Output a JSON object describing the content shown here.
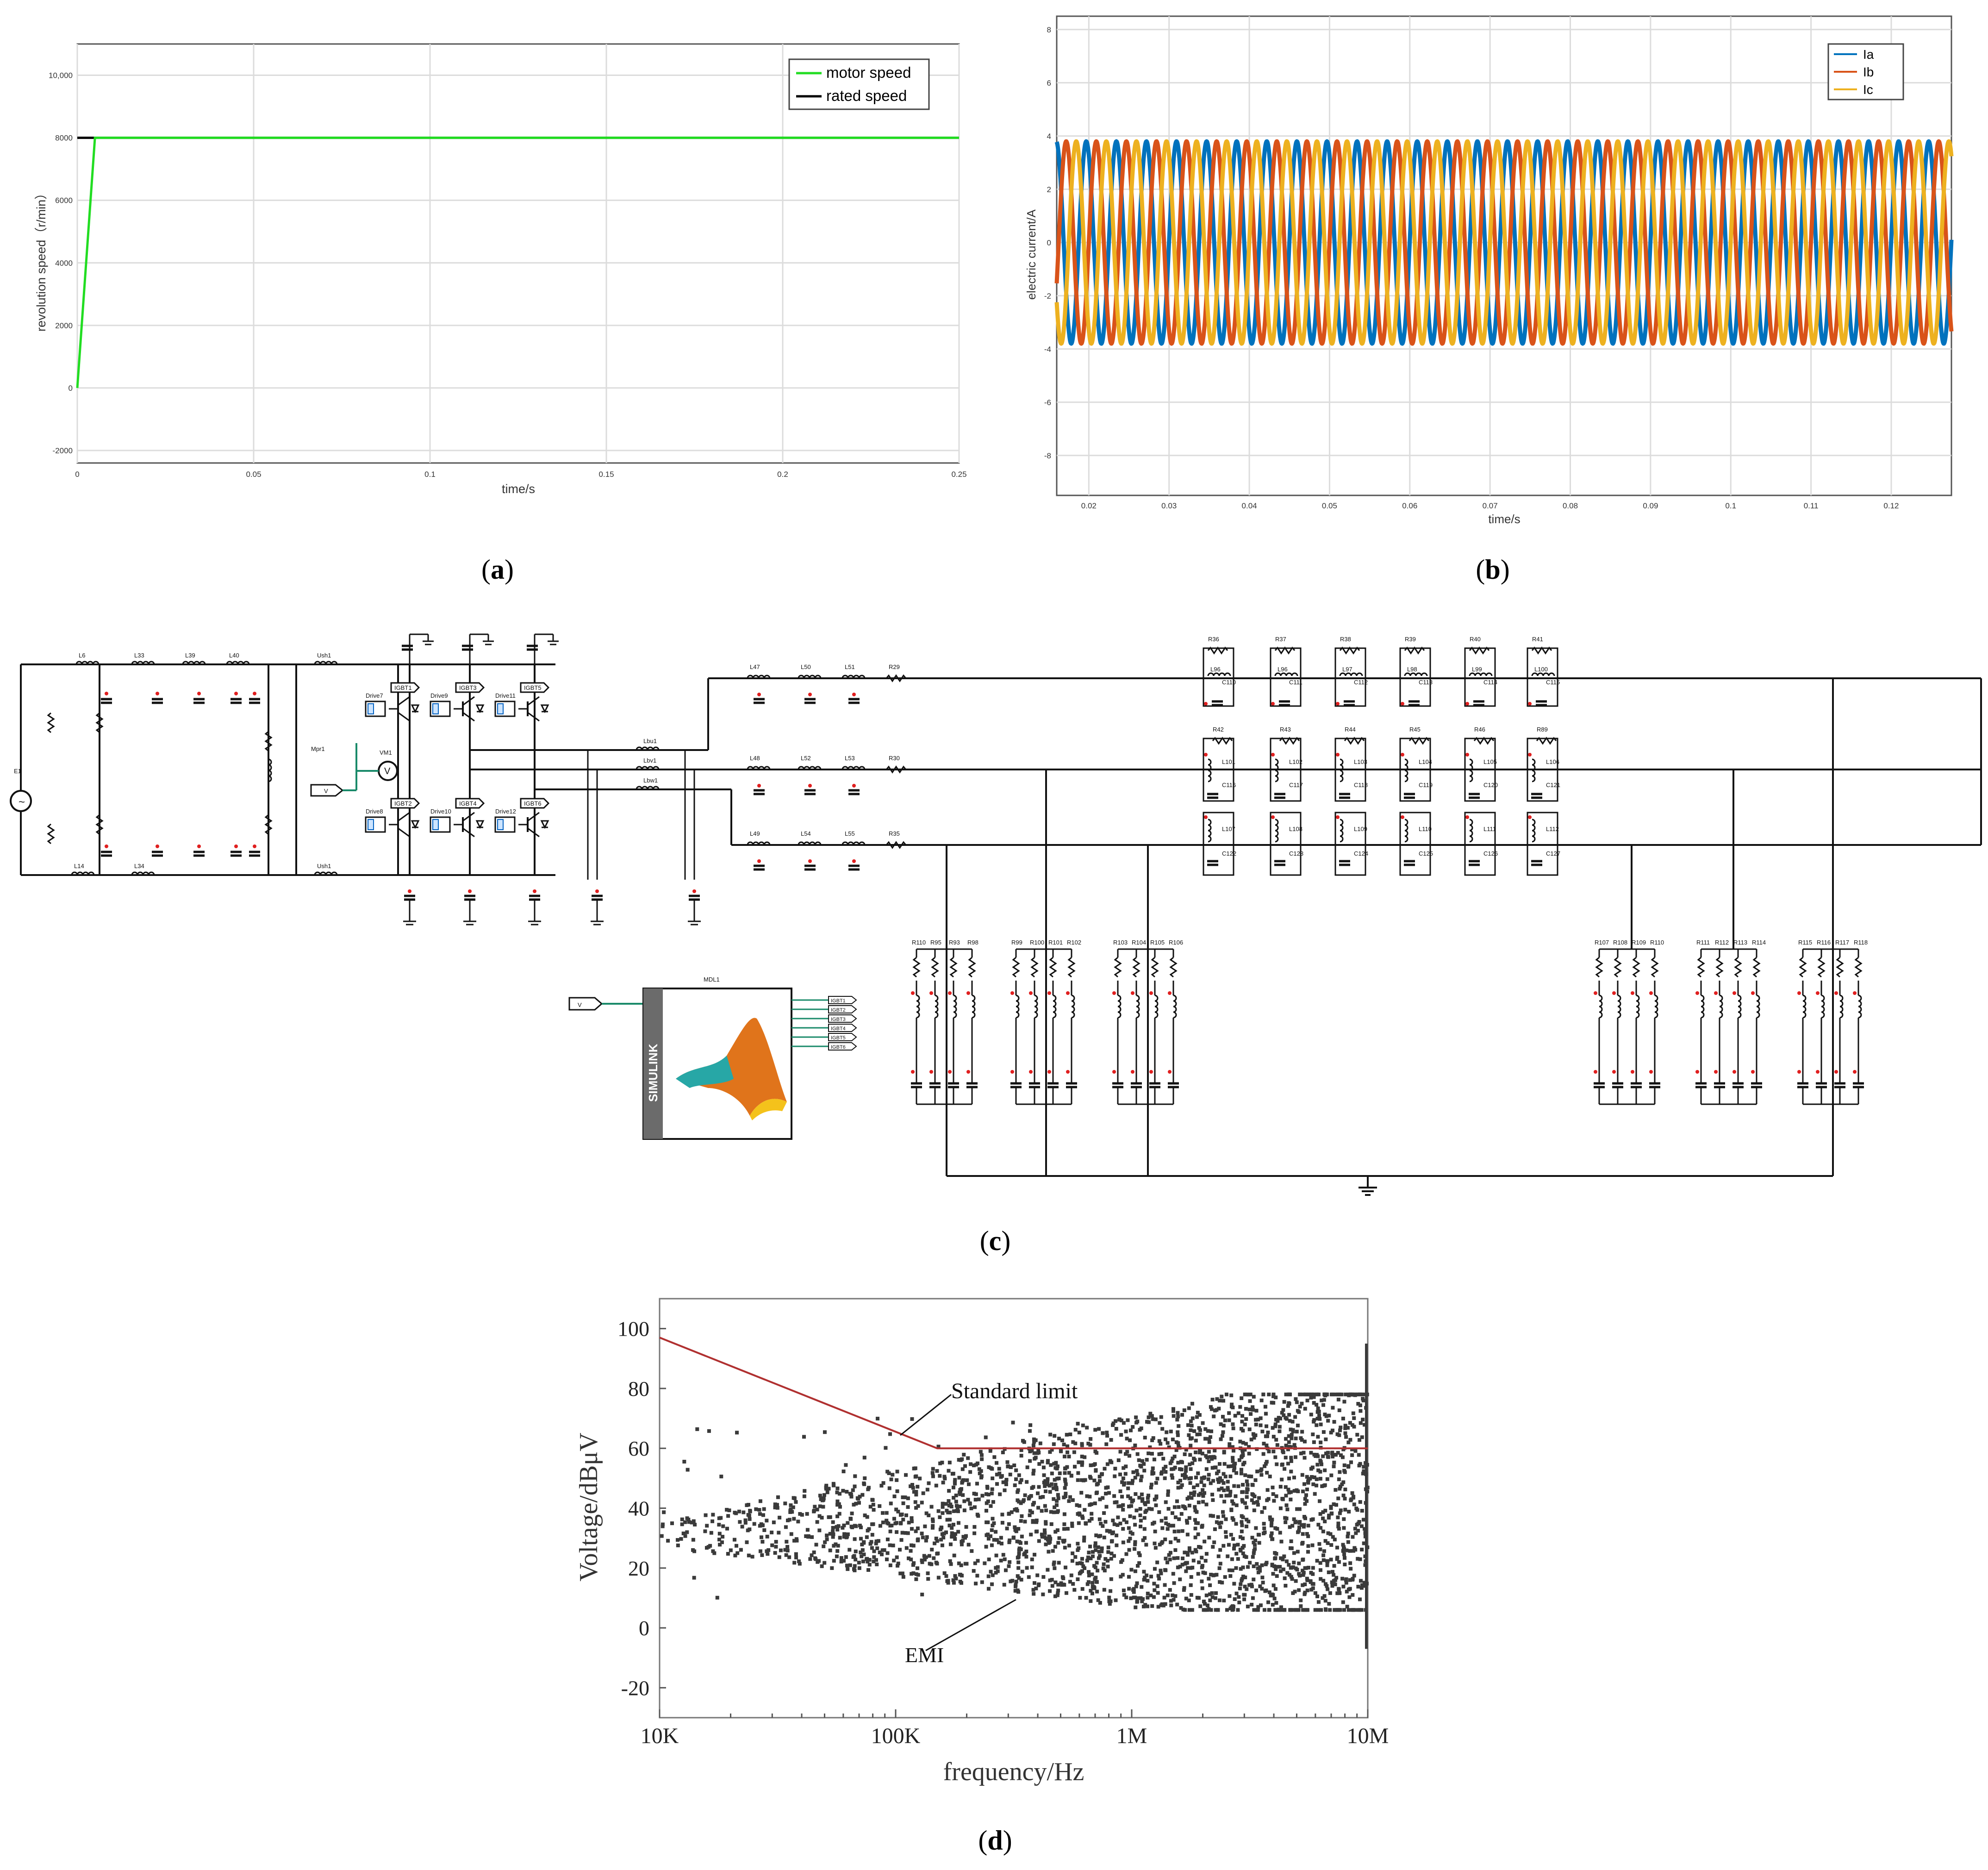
{
  "panel_labels": {
    "a": "a",
    "b": "b",
    "c": "c",
    "d": "d"
  },
  "colors": {
    "motor": "#22dd22",
    "rated": "#000000",
    "ia": "#0072BD",
    "ib": "#D95319",
    "ic": "#EDB120",
    "limit": "#b03030",
    "emi": "#3a3a3a",
    "simulink": "#6b6b6b"
  },
  "chart_data": [
    {
      "id": "a",
      "type": "line",
      "xlabel": "time/s",
      "ylabel": "revolution speed（r/min）",
      "xlim": [
        0,
        0.25
      ],
      "ylim": [
        -2400,
        11000
      ],
      "xticks": [
        0,
        0.05,
        0.1,
        0.15,
        0.2,
        0.25
      ],
      "xtick_labels": [
        "0",
        "0.05",
        "0.1",
        "0.15",
        "0.2",
        "0.25"
      ],
      "yticks": [
        -2000,
        0,
        2000,
        4000,
        6000,
        8000,
        10000
      ],
      "ytick_labels": [
        "-2000",
        "0",
        "2000",
        "4000",
        "6000",
        "8000",
        "10,000"
      ],
      "grid": true,
      "legend": "top-right",
      "series": [
        {
          "name": "motor speed",
          "color": "#22dd22",
          "x": [
            0,
            0.005,
            0.25
          ],
          "y": [
            0,
            8000,
            8000
          ]
        },
        {
          "name": "rated speed",
          "color": "#000000",
          "x": [
            0,
            0.25
          ],
          "y": [
            8000,
            8000
          ]
        }
      ]
    },
    {
      "id": "b",
      "type": "line",
      "xlabel": "time/s",
      "ylabel": "electric current/A",
      "xlim": [
        0.016,
        0.1275
      ],
      "ylim": [
        -9.5,
        8.5
      ],
      "xticks": [
        0.02,
        0.03,
        0.04,
        0.05,
        0.06,
        0.07,
        0.08,
        0.09,
        0.1,
        0.11,
        0.12
      ],
      "xtick_labels": [
        "0.02",
        "0.03",
        "0.04",
        "0.05",
        "0.06",
        "0.07",
        "0.08",
        "0.09",
        "0.1",
        "0.11",
        "0.12"
      ],
      "yticks": [
        -8,
        -6,
        -4,
        -2,
        0,
        2,
        4,
        6,
        8
      ],
      "ytick_labels": [
        "-8",
        "-6",
        "-4",
        "-2",
        "0",
        "2",
        "4",
        "6",
        "8"
      ],
      "grid": true,
      "legend": "top-right",
      "waveform": {
        "amplitude": 3.8,
        "frequency_hz": 266.7
      },
      "series": [
        {
          "name": "Ia",
          "color": "#0072BD",
          "phase_deg": 0
        },
        {
          "name": "Ib",
          "color": "#D95319",
          "phase_deg": -120
        },
        {
          "name": "Ic",
          "color": "#EDB120",
          "phase_deg": 120
        }
      ]
    },
    {
      "id": "d",
      "type": "scatter",
      "xlabel": "frequency/Hz",
      "ylabel": "Voltage/dBμV",
      "xscale": "log",
      "xlim": [
        10000,
        10000000
      ],
      "ylim": [
        -30,
        110
      ],
      "xticks": [
        10000,
        100000,
        1000000,
        10000000
      ],
      "xtick_labels": [
        "10K",
        "100K",
        "1M",
        "10M"
      ],
      "yticks": [
        -20,
        0,
        20,
        40,
        60,
        80,
        100
      ],
      "ytick_labels": [
        "-20",
        "0",
        "20",
        "40",
        "60",
        "80",
        "100"
      ],
      "grid": false,
      "series": [
        {
          "name": "Standard limit",
          "color": "#b03030",
          "x": [
            10000,
            150000,
            10000000
          ],
          "y": [
            97,
            60,
            60
          ]
        },
        {
          "name": "EMI",
          "color": "#3a3a3a",
          "kind": "scatter"
        }
      ],
      "annotations": [
        "Standard limit",
        "EMI"
      ]
    }
  ],
  "circuit": {
    "title": "MDL1",
    "block_text": "SIMULINK",
    "input_label": "V",
    "voltage_labels": [
      "V",
      "V"
    ],
    "top_labels": [
      "L6",
      "L33",
      "L39",
      "L40",
      "Ush1"
    ],
    "bottom_labels": [
      "L14",
      "L34",
      "Ush1"
    ],
    "source_label": "E1",
    "lpf_labels": [
      "L47",
      "L50",
      "L51",
      "R29",
      "L48",
      "L52",
      "L53",
      "R30",
      "L49",
      "L54",
      "L55",
      "R35"
    ],
    "feed_labels": [
      "Lbu1",
      "Lbv1",
      "Lbw1"
    ],
    "driver_labels": [
      "Drive7",
      "Drive9",
      "Drive11",
      "Drive8",
      "Drive10",
      "Drive12"
    ],
    "igbt_labels": [
      "IGBT1",
      "IGBT3",
      "IGBT5",
      "IGBT2",
      "IGBT4",
      "IGBT6"
    ],
    "block_ports": [
      "IGBT1",
      "IGBT2",
      "IGBT3",
      "IGBT4",
      "IGBT5",
      "IGBT6"
    ],
    "motor_labels": [
      "Mpr1",
      "VM1"
    ],
    "r_top": [
      "R36",
      "R37",
      "R38",
      "R39",
      "R40",
      "R41"
    ],
    "l_top": [
      "L96",
      "L96",
      "L97",
      "L98",
      "L99",
      "L100"
    ],
    "c_top": [
      "C110",
      "C111",
      "C112",
      "C113",
      "C114",
      "C115"
    ],
    "r_mid": [
      "R42",
      "R43",
      "R44",
      "R45",
      "R46",
      "R89"
    ],
    "l_mid": [
      "L101",
      "L102",
      "L103",
      "L104",
      "L105",
      "L106"
    ],
    "c_mid": [
      "C116",
      "C117",
      "C118",
      "C119",
      "C120",
      "C121"
    ],
    "l_low": [
      "L107",
      "L108",
      "L109",
      "L110",
      "L111",
      "L112"
    ],
    "c_low": [
      "C122",
      "C123",
      "C124",
      "C125",
      "C126",
      "C127"
    ],
    "grp_left": [
      [
        "R110",
        "R95",
        "R93",
        "R98"
      ],
      [
        "R99",
        "R100",
        "R101",
        "R102"
      ],
      [
        "R103",
        "R104",
        "R105",
        "R106"
      ]
    ],
    "grp_right": [
      [
        "R107",
        "R108",
        "R109",
        "R110"
      ],
      [
        "R111",
        "R112",
        "R113",
        "R114"
      ],
      [
        "R115",
        "R116",
        "R117",
        "R118"
      ]
    ]
  }
}
